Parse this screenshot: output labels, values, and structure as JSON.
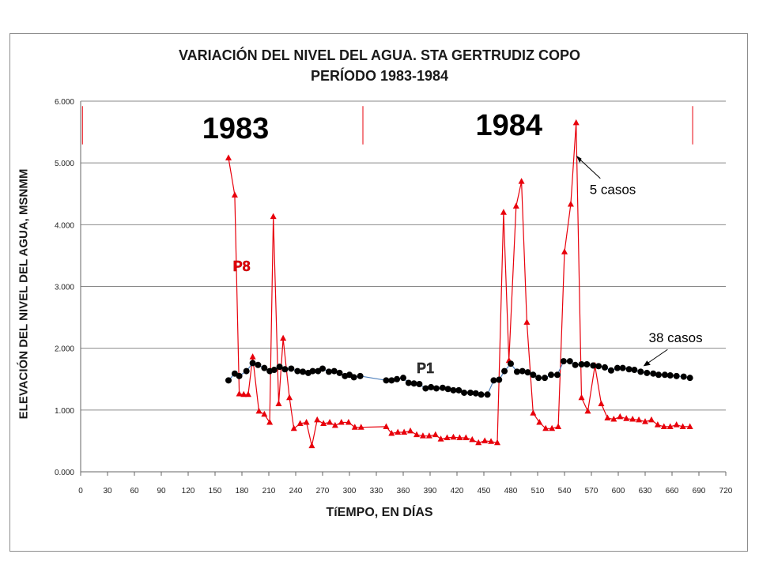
{
  "chart_data": {
    "type": "line",
    "title": "VARIACIÓN DEL NIVEL DEL AGUA. STA GERTRUDIZ COPO",
    "subtitle": "PERÍODO 1983-1984",
    "xlabel": "TíEMPO, EN DÍAS",
    "ylabel": "ELEVACIÓN DEL NIVEL DEL AGUA, MSNMM",
    "xlim": [
      0,
      720
    ],
    "ylim": [
      0,
      6
    ],
    "x_ticks": [
      "0",
      "30",
      "60",
      "90",
      "120",
      "150",
      "180",
      "210",
      "240",
      "270",
      "300",
      "330",
      "360",
      "390",
      "420",
      "450",
      "480",
      "510",
      "540",
      "570",
      "600",
      "630",
      "660",
      "690",
      "720"
    ],
    "y_ticks": [
      "0.000",
      "1.000",
      "2.000",
      "3.000",
      "4.000",
      "5.000",
      "6.000"
    ],
    "grid": "horizontal",
    "year_labels": [
      "1983",
      "1984"
    ],
    "annotations": [
      "5 casos",
      "38 casos"
    ],
    "series": [
      {
        "name": "P8",
        "color": "#e8000b",
        "marker": "triangle",
        "x": [
          165,
          172,
          177,
          182,
          187,
          192,
          199,
          205,
          211,
          215,
          221,
          226,
          233,
          238,
          245,
          252,
          258,
          264,
          271,
          278,
          284,
          291,
          299,
          306,
          313,
          341,
          347,
          354,
          361,
          368,
          375,
          382,
          389,
          396,
          402,
          409,
          416,
          423,
          430,
          437,
          444,
          451,
          458,
          465,
          472,
          478,
          486,
          492,
          498,
          505,
          512,
          519,
          526,
          533,
          540,
          547,
          553,
          559,
          566,
          574,
          581,
          588,
          595,
          602,
          609,
          616,
          623,
          630,
          637,
          644,
          651,
          658,
          665,
          672,
          680
        ],
        "y": [
          5.08,
          4.48,
          1.26,
          1.25,
          1.25,
          1.86,
          0.98,
          0.93,
          0.8,
          4.13,
          1.1,
          2.16,
          1.2,
          0.7,
          0.78,
          0.8,
          0.42,
          0.84,
          0.78,
          0.8,
          0.75,
          0.8,
          0.8,
          0.72,
          0.72,
          0.73,
          0.62,
          0.64,
          0.64,
          0.66,
          0.6,
          0.58,
          0.58,
          0.6,
          0.53,
          0.55,
          0.56,
          0.55,
          0.55,
          0.52,
          0.47,
          0.5,
          0.49,
          0.47,
          4.2,
          1.8,
          4.3,
          4.7,
          2.42,
          0.95,
          0.8,
          0.7,
          0.7,
          0.73,
          3.56,
          4.33,
          5.65,
          1.2,
          0.98,
          1.72,
          1.1,
          0.87,
          0.85,
          0.89,
          0.86,
          0.85,
          0.84,
          0.81,
          0.84,
          0.76,
          0.73,
          0.73,
          0.76,
          0.73,
          0.73
        ]
      },
      {
        "name": "P1",
        "color": "#000000",
        "line_color": "#4f81bd",
        "marker": "circle",
        "x": [
          165,
          172,
          177,
          185,
          192,
          198,
          205,
          211,
          216,
          222,
          228,
          235,
          242,
          248,
          254,
          259,
          265,
          270,
          277,
          283,
          289,
          295,
          300,
          305,
          312,
          341,
          347,
          353,
          360,
          366,
          372,
          378,
          385,
          391,
          397,
          404,
          410,
          416,
          422,
          428,
          435,
          441,
          447,
          454,
          461,
          467,
          473,
          480,
          487,
          493,
          499,
          505,
          511,
          518,
          525,
          532,
          539,
          546,
          552,
          559,
          565,
          572,
          578,
          585,
          592,
          599,
          605,
          612,
          618,
          625,
          632,
          639,
          645,
          652,
          658,
          665,
          673,
          680
        ],
        "y": [
          1.48,
          1.59,
          1.55,
          1.63,
          1.76,
          1.73,
          1.68,
          1.63,
          1.65,
          1.7,
          1.66,
          1.67,
          1.63,
          1.62,
          1.6,
          1.63,
          1.63,
          1.67,
          1.62,
          1.63,
          1.6,
          1.55,
          1.57,
          1.53,
          1.55,
          1.48,
          1.48,
          1.5,
          1.52,
          1.44,
          1.43,
          1.42,
          1.35,
          1.37,
          1.35,
          1.36,
          1.34,
          1.32,
          1.32,
          1.28,
          1.28,
          1.27,
          1.25,
          1.25,
          1.48,
          1.49,
          1.63,
          1.75,
          1.62,
          1.63,
          1.61,
          1.57,
          1.52,
          1.52,
          1.57,
          1.57,
          1.79,
          1.79,
          1.73,
          1.74,
          1.74,
          1.72,
          1.71,
          1.69,
          1.64,
          1.68,
          1.68,
          1.66,
          1.65,
          1.62,
          1.6,
          1.59,
          1.57,
          1.57,
          1.56,
          1.55,
          1.54,
          1.52
        ]
      }
    ]
  }
}
